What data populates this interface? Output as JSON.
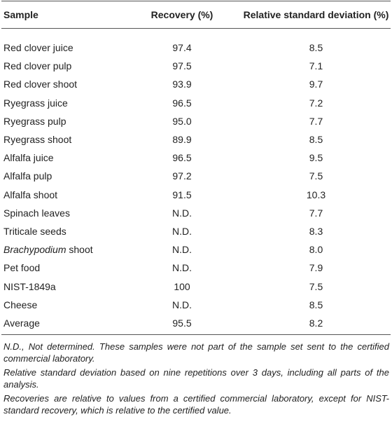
{
  "table": {
    "header": [
      "Sample",
      "Recovery (%)",
      "Relative standard deviation (%)"
    ],
    "rows": [
      [
        "Red clover juice",
        "97.4",
        "8.5"
      ],
      [
        "Red clover pulp",
        "97.5",
        "7.1"
      ],
      [
        "Red clover shoot",
        "93.9",
        "9.7"
      ],
      [
        "Ryegrass juice",
        "96.5",
        "7.2"
      ],
      [
        "Ryegrass pulp",
        "95.0",
        "7.7"
      ],
      [
        "Ryegrass shoot",
        "89.9",
        "8.5"
      ],
      [
        "Alfalfa juice",
        "96.5",
        "9.5"
      ],
      [
        "Alfalfa pulp",
        "97.2",
        "7.5"
      ],
      [
        "Alfalfa shoot",
        "91.5",
        "10.3"
      ],
      [
        "Spinach leaves",
        "N.D.",
        "7.7"
      ],
      [
        "Triticale seeds",
        "N.D.",
        "8.3"
      ],
      [
        [
          "Brachypodium",
          "shoot"
        ],
        "N.D.",
        "8.0"
      ],
      [
        "Pet food",
        "N.D.",
        "7.9"
      ],
      [
        "NIST-1849a",
        "100",
        "7.5"
      ],
      [
        "Cheese",
        "N.D.",
        "8.5"
      ],
      [
        "Average",
        "95.5",
        "8.2"
      ]
    ],
    "footnotes": [
      "N.D., Not determined. These samples were not part of the sample set sent to the certified commercial laboratory.",
      "Relative standard deviation based on nine repetitions over 3 days, including all parts of the analysis.",
      "Recoveries are relative to values from a certified commercial laboratory, except for NIST-standard recovery, which is relative to the certified value."
    ]
  }
}
